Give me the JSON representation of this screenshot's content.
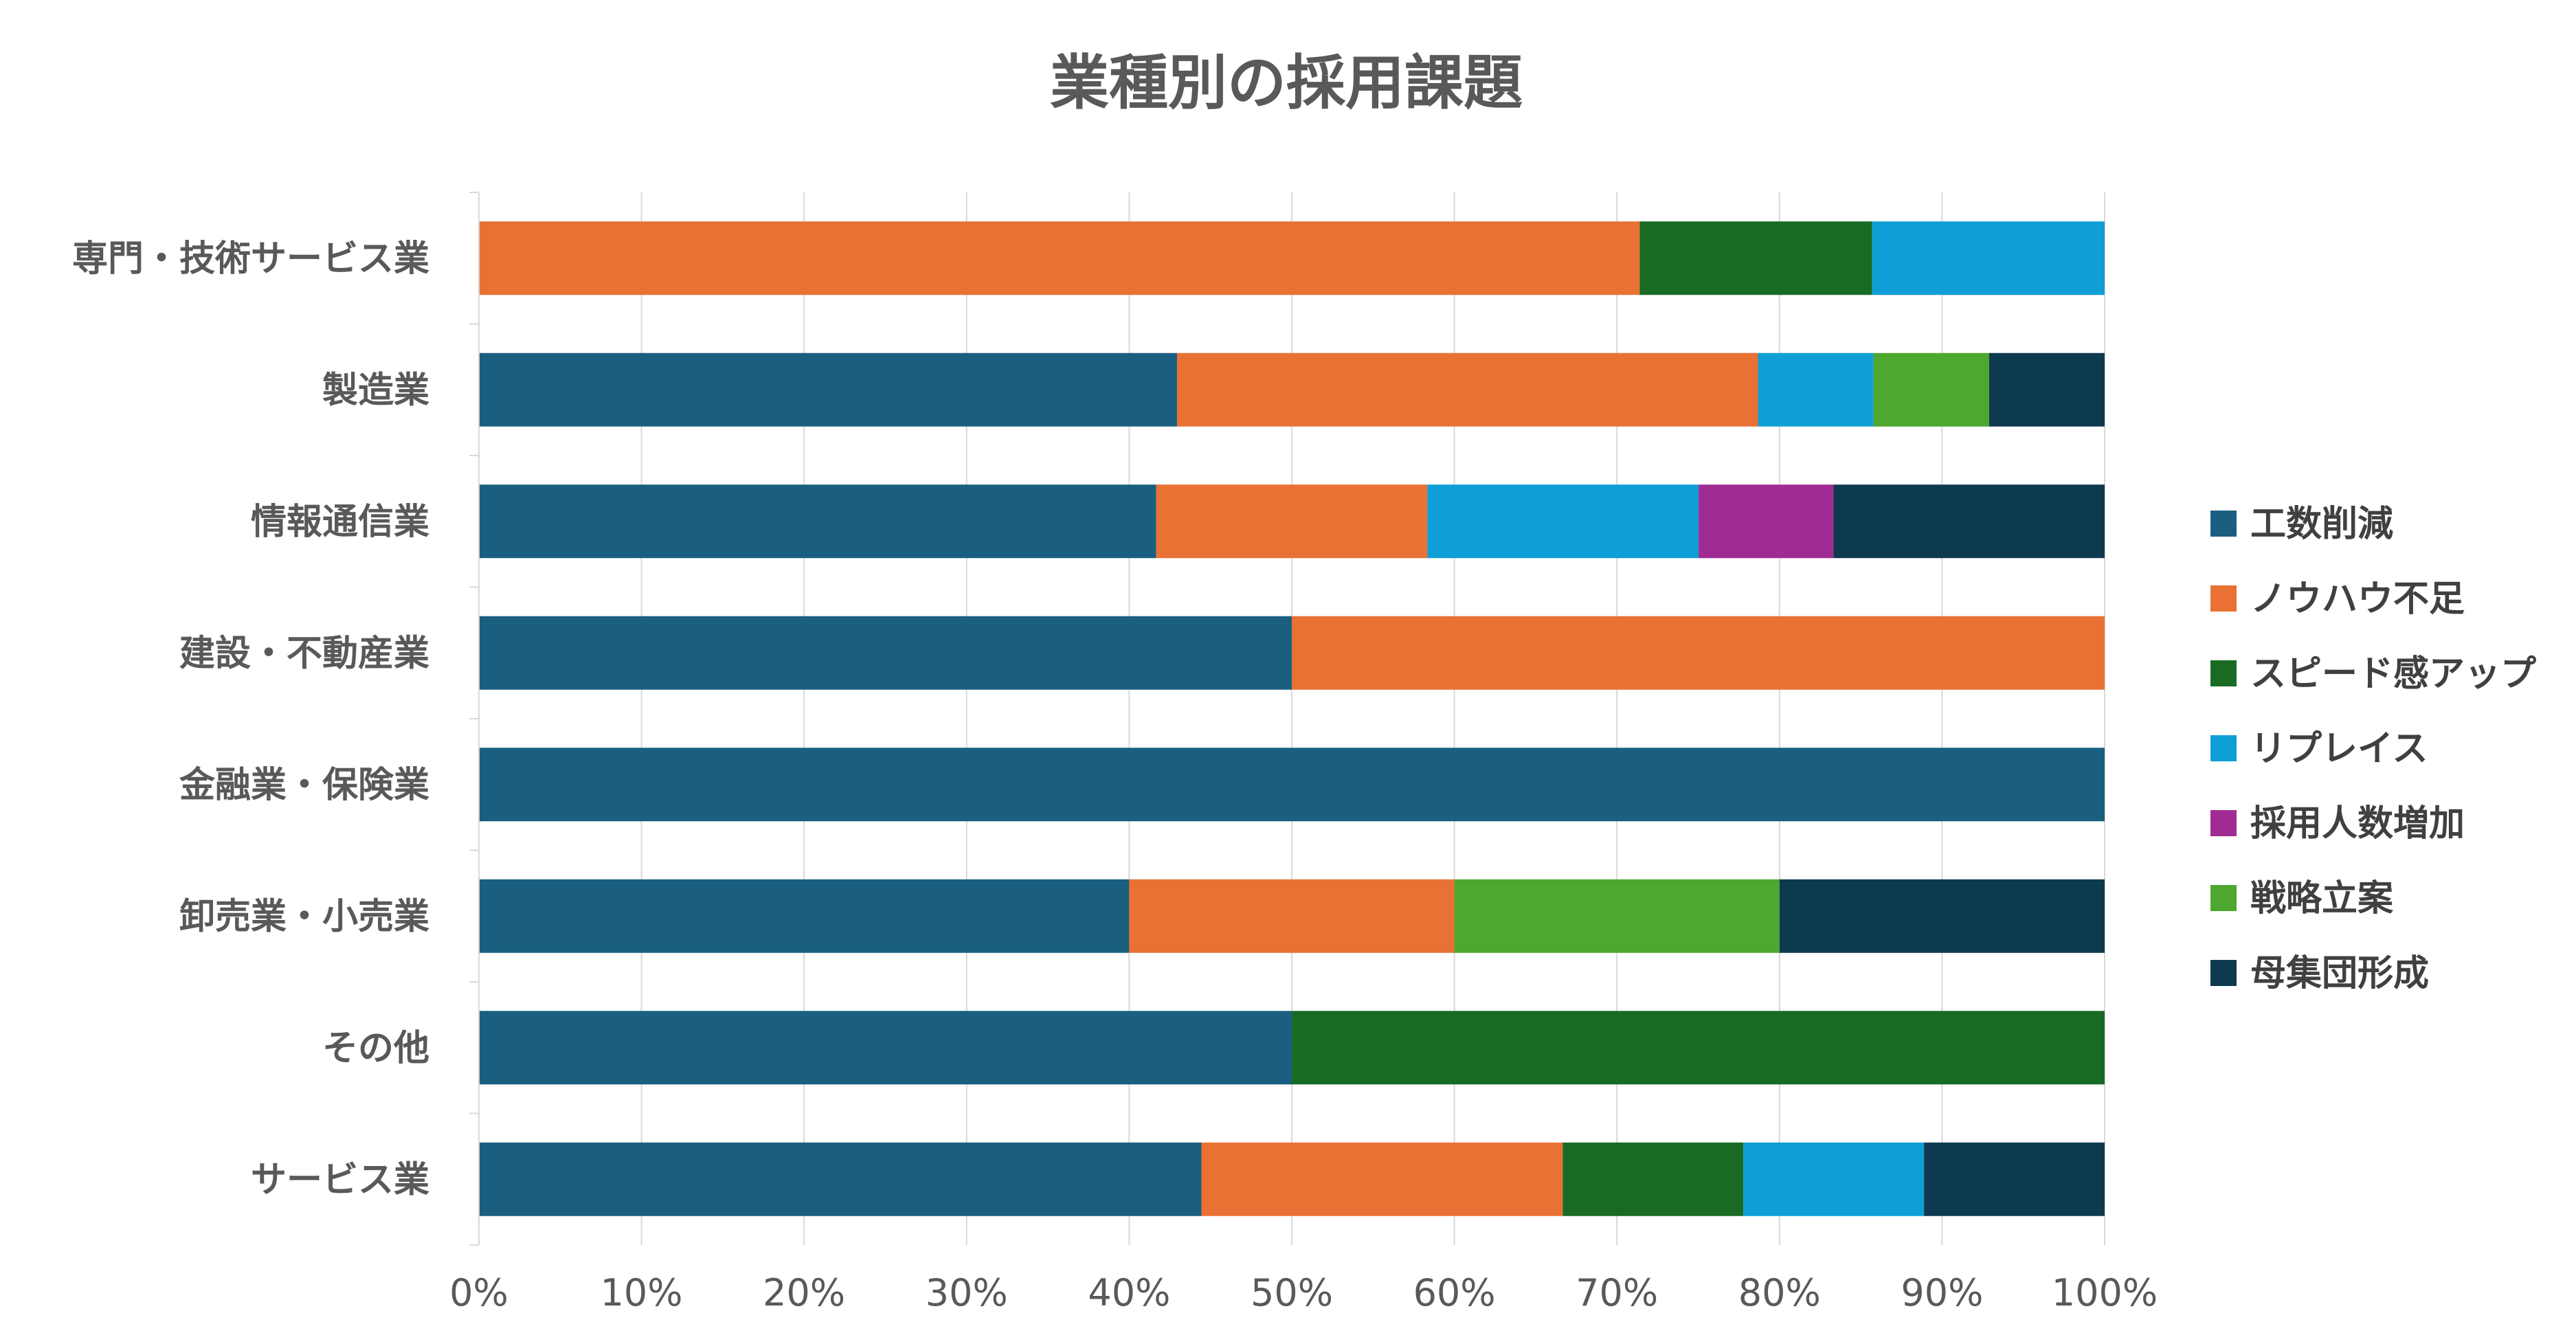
{
  "chart_data": {
    "type": "bar",
    "orientation": "horizontal",
    "stacked": "percent",
    "title": "業種別の採用課題",
    "categories": [
      "専門・技術サービス業",
      "製造業",
      "情報通信業",
      "建設・不動産業",
      "金融業・保険業",
      "卸売業・小売業",
      "その他",
      "サービス業"
    ],
    "series": [
      {
        "name": "工数削減",
        "color": "#1a5f80",
        "values": [
          0,
          42.9,
          41.7,
          50,
          100,
          40,
          50,
          44.4
        ]
      },
      {
        "name": "ノウハウ不足",
        "color": "#e97133",
        "values": [
          71.4,
          35.7,
          16.7,
          50,
          0,
          20,
          0,
          22.2
        ]
      },
      {
        "name": "スピード感アップ",
        "color": "#196b24",
        "values": [
          14.3,
          0,
          0,
          0,
          0,
          0,
          50,
          11.1
        ]
      },
      {
        "name": "リプレイス",
        "color": "#0f9ed5",
        "values": [
          14.3,
          7.1,
          16.7,
          0,
          0,
          0,
          0,
          11.1
        ]
      },
      {
        "name": "採用人数増加",
        "color": "#a02b93",
        "values": [
          0,
          0,
          8.3,
          0,
          0,
          0,
          0,
          0
        ]
      },
      {
        "name": "戦略立案",
        "color": "#4ea72e",
        "values": [
          0,
          7.1,
          0,
          0,
          0,
          20,
          0,
          0
        ]
      },
      {
        "name": "母集団形成",
        "color": "#0e3a50",
        "values": [
          0,
          7.1,
          16.7,
          0,
          0,
          20,
          0,
          11.1
        ]
      }
    ],
    "x_ticks": [
      "0%",
      "10%",
      "20%",
      "30%",
      "40%",
      "50%",
      "60%",
      "70%",
      "80%",
      "90%",
      "100%"
    ],
    "xlim": [
      0,
      100
    ],
    "grid": "vertical",
    "legend_position": "right"
  }
}
